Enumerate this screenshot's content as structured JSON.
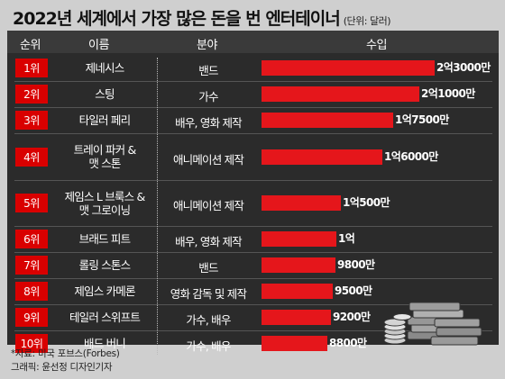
{
  "title": "2022년 세계에서 가장 많은 돈을 번 엔터테이너",
  "unit": "(단위: 달러)",
  "headers": {
    "rank": "순위",
    "name": "이름",
    "field": "분야",
    "income": "수입"
  },
  "rows": [
    {
      "rank": "1위",
      "name": "제네시스",
      "field": "밴드",
      "income": "2억3000만"
    },
    {
      "rank": "2위",
      "name": "스팅",
      "field": "가수",
      "income": "2억1000만"
    },
    {
      "rank": "3위",
      "name": "타일러 페리",
      "field": "배우, 영화 제작",
      "income": "1억7500만"
    },
    {
      "rank": "4위",
      "name": "트레이 파커 &\n맷 스톤",
      "field": "애니메이션 제작",
      "income": "1억6000만"
    },
    {
      "rank": "5위",
      "name": "제임스 L 브룩스 &\n맷 그로이닝",
      "field": "애니메이션 제작",
      "income": "1억500만"
    },
    {
      "rank": "6위",
      "name": "브래드 피트",
      "field": "배우, 영화 제작",
      "income": "1억"
    },
    {
      "rank": "7위",
      "name": "롤링 스톤스",
      "field": "밴드",
      "income": "9800만"
    },
    {
      "rank": "8위",
      "name": "제임스 카메론",
      "field": "영화 감독 및 제작",
      "income": "9500만"
    },
    {
      "rank": "9위",
      "name": "테일러 스위프트",
      "field": "가수, 배우",
      "income": "9200만"
    },
    {
      "rank": "10위",
      "name": "배드 버니",
      "field": "가수, 배우",
      "income": "8800만"
    }
  ],
  "chart_data": {
    "type": "bar",
    "categories": [
      "제네시스",
      "스팅",
      "타일러 페리",
      "트레이 파커 & 맷 스톤",
      "제임스 L 브룩스 & 맷 그로이닝",
      "브래드 피트",
      "롤링 스톤스",
      "제임스 카메론",
      "테일러 스위프트",
      "배드 버니"
    ],
    "values": [
      230000000,
      210000000,
      175000000,
      160000000,
      105000000,
      100000000,
      98000000,
      95000000,
      92000000,
      88000000
    ],
    "title": "2022년 세계에서 가장 많은 돈을 번 엔터테이너",
    "ylabel": "수입",
    "colors": {
      "bar": "#e5161b",
      "rank_badge": "#d90000",
      "panel": "#2b2b2b"
    }
  },
  "source": "*자료: 미국 포브스(Forbes)",
  "credit": "그래픽: 윤선정 디자인기자",
  "decor": {
    "money_icon": "money-stack-icon"
  }
}
